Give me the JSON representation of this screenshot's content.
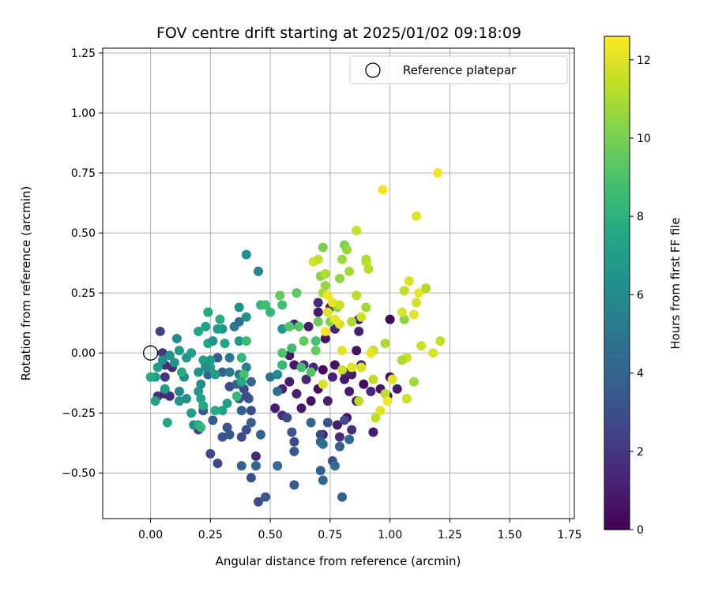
{
  "chart_data": {
    "type": "scatter",
    "title": "FOV centre drift starting at 2025/01/02 09:18:09",
    "xlabel": "Angular distance from reference (arcmin)",
    "ylabel": "Rotation from reference (arcmin)",
    "xlim": [
      -0.2,
      1.77
    ],
    "ylim": [
      -0.69,
      1.27
    ],
    "x_ticks": [
      "0.00",
      "0.25",
      "0.50",
      "0.75",
      "1.00",
      "1.25",
      "1.50",
      "1.75"
    ],
    "y_ticks": [
      "−0.50",
      "−0.25",
      "0.00",
      "0.25",
      "0.50",
      "0.75",
      "1.00",
      "1.25"
    ],
    "grid": true,
    "legend": {
      "position": "top-right",
      "entries": [
        "Reference platepar"
      ]
    },
    "colorbar": {
      "label": "Hours from first FF file",
      "colormap": "viridis",
      "range": [
        0,
        12.6
      ],
      "ticks": [
        "0",
        "2",
        "4",
        "6",
        "8",
        "10",
        "12"
      ]
    },
    "reference_point": {
      "x": 0.0,
      "y": 0.0
    },
    "points": [
      [
        1.0,
        0.14,
        0.2
      ],
      [
        0.93,
        0.01,
        0.4
      ],
      [
        0.86,
        0.01,
        0.6
      ],
      [
        0.88,
        -0.05,
        0.8
      ],
      [
        0.83,
        -0.16,
        1.0
      ],
      [
        0.89,
        -0.13,
        0.3
      ],
      [
        0.86,
        -0.2,
        0.5
      ],
      [
        0.82,
        -0.27,
        0.7
      ],
      [
        0.78,
        -0.3,
        0.9
      ],
      [
        0.74,
        -0.2,
        1.1
      ],
      [
        0.72,
        -0.07,
        0.4
      ],
      [
        0.77,
        -0.05,
        0.6
      ],
      [
        0.81,
        -0.11,
        0.8
      ],
      [
        0.84,
        -0.09,
        1.0
      ],
      [
        0.76,
        -0.1,
        1.2
      ],
      [
        0.7,
        -0.15,
        0.5
      ],
      [
        0.67,
        -0.2,
        0.7
      ],
      [
        0.63,
        -0.23,
        0.9
      ],
      [
        0.61,
        -0.17,
        1.1
      ],
      [
        0.65,
        -0.11,
        1.3
      ],
      [
        0.58,
        -0.12,
        1.0
      ],
      [
        0.55,
        -0.15,
        1.2
      ],
      [
        0.6,
        -0.05,
        0.8
      ],
      [
        0.64,
        -0.05,
        1.4
      ],
      [
        0.72,
        -0.34,
        1.2
      ],
      [
        0.79,
        -0.35,
        1.5
      ],
      [
        0.84,
        -0.32,
        1.6
      ],
      [
        0.93,
        -0.33,
        1.0
      ],
      [
        1.0,
        -0.1,
        0.6
      ],
      [
        1.03,
        -0.15,
        0.9
      ],
      [
        0.96,
        -0.15,
        0.7
      ],
      [
        0.99,
        -0.18,
        0.5
      ],
      [
        0.92,
        -0.16,
        1.3
      ],
      [
        0.81,
        -0.08,
        1.4
      ],
      [
        0.87,
        0.14,
        0.9
      ],
      [
        0.87,
        0.09,
        1.1
      ],
      [
        0.77,
        0.1,
        1.3
      ],
      [
        0.73,
        0.06,
        0.7
      ],
      [
        0.7,
        0.17,
        0.8
      ],
      [
        0.66,
        0.11,
        1.0
      ],
      [
        0.6,
        0.12,
        1.2
      ],
      [
        0.7,
        0.21,
        1.5
      ],
      [
        0.75,
        0.19,
        1.1
      ],
      [
        0.58,
        -0.01,
        0.9
      ],
      [
        0.68,
        -0.06,
        1.5
      ],
      [
        0.52,
        -0.23,
        1.0
      ],
      [
        0.55,
        -0.26,
        1.6
      ],
      [
        0.44,
        -0.43,
        1.4
      ],
      [
        0.09,
        -0.06,
        1.4
      ],
      [
        0.06,
        -0.05,
        1.6
      ],
      [
        0.03,
        -0.18,
        1.8
      ],
      [
        0.06,
        -0.17,
        1.2
      ],
      [
        0.08,
        -0.18,
        1.6
      ],
      [
        0.06,
        -0.16,
        1.9
      ],
      [
        0.04,
        0.09,
        2.4
      ],
      [
        0.05,
        0.0,
        2.0
      ],
      [
        0.06,
        -0.1,
        2.1
      ],
      [
        0.2,
        -0.32,
        2.2
      ],
      [
        0.25,
        -0.42,
        2.6
      ],
      [
        0.28,
        -0.46,
        2.8
      ],
      [
        0.3,
        -0.35,
        3.3
      ],
      [
        0.32,
        -0.31,
        3.4
      ],
      [
        0.33,
        -0.34,
        3.5
      ],
      [
        0.37,
        -0.19,
        3.6
      ],
      [
        0.38,
        -0.24,
        3.7
      ],
      [
        0.42,
        -0.24,
        3.0
      ],
      [
        0.4,
        -0.32,
        3.2
      ],
      [
        0.42,
        -0.29,
        3.8
      ],
      [
        0.38,
        -0.35,
        2.9
      ],
      [
        0.38,
        -0.47,
        3.9
      ],
      [
        0.42,
        -0.52,
        3.1
      ],
      [
        0.44,
        -0.47,
        4.2
      ],
      [
        0.45,
        -0.62,
        3.0
      ],
      [
        0.48,
        -0.6,
        3.4
      ],
      [
        0.46,
        -0.34,
        4.0
      ],
      [
        0.53,
        -0.47,
        4.4
      ],
      [
        0.57,
        -0.27,
        2.8
      ],
      [
        0.59,
        -0.33,
        3.3
      ],
      [
        0.6,
        -0.37,
        2.8
      ],
      [
        0.6,
        -0.41,
        3.5
      ],
      [
        0.6,
        -0.55,
        3.6
      ],
      [
        0.67,
        -0.29,
        4.1
      ],
      [
        0.71,
        -0.34,
        2.6
      ],
      [
        0.71,
        -0.37,
        3.8
      ],
      [
        0.71,
        -0.49,
        3.9
      ],
      [
        0.72,
        -0.53,
        4.2
      ],
      [
        0.74,
        -0.29,
        3.2
      ],
      [
        0.76,
        -0.45,
        3.0
      ],
      [
        0.77,
        -0.47,
        4.5
      ],
      [
        0.79,
        -0.39,
        3.7
      ],
      [
        0.8,
        -0.6,
        4.0
      ],
      [
        0.81,
        -0.28,
        2.9
      ],
      [
        0.83,
        -0.36,
        4.3
      ],
      [
        0.72,
        -0.38,
        4.6
      ],
      [
        0.28,
        -0.02,
        3.6
      ],
      [
        0.3,
        -0.08,
        3.9
      ],
      [
        0.33,
        -0.14,
        3.0
      ],
      [
        0.36,
        -0.13,
        4.0
      ],
      [
        0.39,
        -0.15,
        2.9
      ],
      [
        0.41,
        -0.19,
        3.8
      ],
      [
        0.42,
        -0.12,
        4.2
      ],
      [
        0.4,
        -0.18,
        3.1
      ],
      [
        0.5,
        -0.1,
        4.8
      ],
      [
        0.53,
        -0.16,
        4.7
      ],
      [
        0.23,
        -0.05,
        3.2
      ],
      [
        0.24,
        -0.09,
        4.0
      ],
      [
        0.22,
        -0.24,
        3.4
      ],
      [
        0.26,
        -0.28,
        3.6
      ],
      [
        0.33,
        -0.08,
        5.0
      ],
      [
        0.37,
        -0.09,
        5.2
      ],
      [
        0.4,
        -0.06,
        5.5
      ],
      [
        0.33,
        -0.02,
        4.9
      ],
      [
        0.35,
        0.11,
        5.0
      ],
      [
        0.37,
        0.13,
        4.6
      ],
      [
        0.45,
        0.34,
        5.8
      ],
      [
        0.4,
        0.41,
        6.2
      ],
      [
        0.37,
        0.19,
        6.3
      ],
      [
        0.3,
        0.1,
        6.5
      ],
      [
        0.37,
        0.05,
        6.7
      ],
      [
        0.4,
        0.15,
        6.4
      ],
      [
        0.53,
        -0.09,
        6.0
      ],
      [
        0.55,
        -0.05,
        6.8
      ],
      [
        0.55,
        0.1,
        6.6
      ],
      [
        0.02,
        -0.1,
        6.8
      ],
      [
        0.03,
        -0.06,
        7.0
      ],
      [
        0.05,
        -0.03,
        6.2
      ],
      [
        0.08,
        -0.01,
        6.4
      ],
      [
        0.1,
        -0.04,
        6.5
      ],
      [
        0.12,
        0.01,
        6.8
      ],
      [
        0.11,
        0.06,
        6.0
      ],
      [
        0.15,
        -0.02,
        6.6
      ],
      [
        0.17,
        0.0,
        7.0
      ],
      [
        0.14,
        -0.1,
        6.0
      ],
      [
        0.12,
        -0.16,
        5.8
      ],
      [
        0.12,
        -0.2,
        6.6
      ],
      [
        0.15,
        -0.19,
        6.3
      ],
      [
        0.17,
        -0.25,
        6.9
      ],
      [
        0.18,
        -0.3,
        6.2
      ],
      [
        0.2,
        -0.16,
        6.7
      ],
      [
        0.21,
        -0.13,
        6.1
      ],
      [
        0.2,
        -0.08,
        6.5
      ],
      [
        0.22,
        -0.03,
        7.2
      ],
      [
        0.25,
        -0.03,
        6.8
      ],
      [
        0.25,
        -0.06,
        7.1
      ],
      [
        0.27,
        -0.09,
        6.9
      ],
      [
        0.23,
        -0.06,
        6.1
      ],
      [
        0.24,
        0.04,
        7.4
      ],
      [
        0.26,
        0.05,
        6.6
      ],
      [
        0.23,
        0.11,
        7.2
      ],
      [
        0.2,
        0.09,
        7.5
      ],
      [
        0.24,
        0.17,
        7.6
      ],
      [
        0.31,
        0.04,
        7.3
      ],
      [
        0.28,
        0.1,
        6.9
      ],
      [
        0.29,
        0.14,
        7.8
      ],
      [
        0.32,
        -0.21,
        7.0
      ],
      [
        0.3,
        -0.24,
        7.4
      ],
      [
        0.27,
        -0.24,
        7.7
      ],
      [
        0.2,
        -0.3,
        7.8
      ],
      [
        0.21,
        -0.31,
        8.2
      ],
      [
        0.21,
        -0.19,
        7.2
      ],
      [
        0.22,
        -0.22,
        7.6
      ],
      [
        0.07,
        -0.29,
        7.5
      ],
      [
        0.0,
        -0.1,
        7.7
      ],
      [
        0.02,
        -0.2,
        7.2
      ],
      [
        0.06,
        -0.15,
        7.0
      ],
      [
        0.13,
        -0.08,
        7.8
      ],
      [
        0.36,
        -0.18,
        8.4
      ],
      [
        0.38,
        -0.02,
        8.2
      ],
      [
        0.39,
        -0.09,
        8.8
      ],
      [
        0.4,
        0.05,
        8.6
      ],
      [
        0.38,
        -0.12,
        7.6
      ],
      [
        0.46,
        0.2,
        8.2
      ],
      [
        0.48,
        0.2,
        8.7
      ],
      [
        0.5,
        0.17,
        8.3
      ],
      [
        0.55,
        0.0,
        9.0
      ],
      [
        0.55,
        -0.05,
        8.4
      ],
      [
        0.58,
        0.11,
        9.2
      ],
      [
        0.54,
        0.24,
        9.6
      ],
      [
        0.55,
        0.2,
        8.8
      ],
      [
        0.59,
        0.02,
        8.6
      ],
      [
        0.61,
        0.25,
        9.4
      ],
      [
        0.63,
        -0.06,
        8.7
      ],
      [
        0.64,
        0.05,
        9.5
      ],
      [
        0.62,
        0.11,
        9.3
      ],
      [
        0.67,
        -0.08,
        9.1
      ],
      [
        0.69,
        0.01,
        9.6
      ],
      [
        0.69,
        0.05,
        8.9
      ],
      [
        0.7,
        0.13,
        9.8
      ],
      [
        0.72,
        0.44,
        10.0
      ],
      [
        0.71,
        0.32,
        10.3
      ],
      [
        0.73,
        0.28,
        10.6
      ],
      [
        0.72,
        0.25,
        10.9
      ],
      [
        0.75,
        0.13,
        10.2
      ],
      [
        0.78,
        0.19,
        10.4
      ],
      [
        0.79,
        0.31,
        10.5
      ],
      [
        0.8,
        0.39,
        10.7
      ],
      [
        0.81,
        0.45,
        10.1
      ],
      [
        0.82,
        0.43,
        10.6
      ],
      [
        0.83,
        0.34,
        10.9
      ],
      [
        0.86,
        0.24,
        11.3
      ],
      [
        0.88,
        0.15,
        11.6
      ],
      [
        0.84,
        0.13,
        11.0
      ],
      [
        0.86,
        0.51,
        11.5
      ],
      [
        0.9,
        0.38,
        11.7
      ],
      [
        0.91,
        0.35,
        11.2
      ],
      [
        0.9,
        0.19,
        10.8
      ],
      [
        0.97,
        0.68,
        12.3
      ],
      [
        1.11,
        0.57,
        12.0
      ],
      [
        1.2,
        0.75,
        12.4
      ],
      [
        1.06,
        0.26,
        11.4
      ],
      [
        1.08,
        0.3,
        11.9
      ],
      [
        1.11,
        0.21,
        11.8
      ],
      [
        1.12,
        0.25,
        12.2
      ],
      [
        1.13,
        0.03,
        11.6
      ],
      [
        1.15,
        0.27,
        11.1
      ],
      [
        1.18,
        0.0,
        11.9
      ],
      [
        1.21,
        0.05,
        11.4
      ],
      [
        1.06,
        0.14,
        10.4
      ],
      [
        1.07,
        -0.02,
        11.7
      ],
      [
        1.07,
        -0.19,
        11.6
      ],
      [
        1.05,
        -0.03,
        11.0
      ],
      [
        1.1,
        -0.12,
        10.8
      ],
      [
        1.01,
        -0.11,
        12.0
      ],
      [
        0.98,
        -0.17,
        11.3
      ],
      [
        0.99,
        -0.2,
        12.3
      ],
      [
        0.96,
        -0.24,
        12.1
      ],
      [
        0.94,
        -0.27,
        11.4
      ],
      [
        0.93,
        0.01,
        11.6
      ],
      [
        0.92,
        0.0,
        12.2
      ],
      [
        0.93,
        -0.11,
        11.3
      ],
      [
        0.88,
        -0.06,
        11.8
      ],
      [
        0.87,
        -0.2,
        11.2
      ],
      [
        0.84,
        -0.06,
        12.0
      ],
      [
        0.8,
        -0.07,
        11.6
      ],
      [
        0.8,
        0.01,
        12.1
      ],
      [
        0.76,
        0.21,
        12.2
      ],
      [
        0.74,
        0.24,
        12.4
      ],
      [
        0.74,
        0.17,
        12.0
      ],
      [
        0.79,
        0.12,
        12.0
      ],
      [
        0.73,
        0.09,
        12.5
      ],
      [
        0.77,
        0.14,
        12.2
      ],
      [
        0.79,
        0.2,
        11.6
      ],
      [
        0.72,
        -0.13,
        11.9
      ],
      [
        0.68,
        0.38,
        11.9
      ],
      [
        0.7,
        0.39,
        11.5
      ],
      [
        0.9,
        0.39,
        11.1
      ],
      [
        1.05,
        0.17,
        11.9
      ],
      [
        1.1,
        0.16,
        12.1
      ],
      [
        0.98,
        0.04,
        11.0
      ],
      [
        0.73,
        0.33,
        11.0
      ]
    ]
  }
}
